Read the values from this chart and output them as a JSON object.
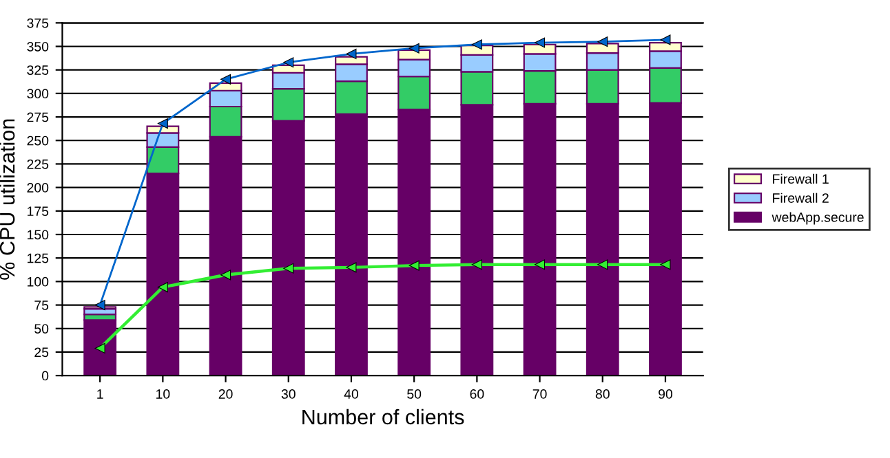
{
  "chart_data": {
    "type": "bar",
    "stacked": true,
    "xlabel": "Number of clients",
    "ylabel": "% CPU utilization",
    "categories": [
      "1",
      "10",
      "20",
      "30",
      "40",
      "50",
      "60",
      "70",
      "80",
      "90"
    ],
    "series": [
      {
        "type": "line",
        "color": "#33ee33",
        "marker": "triangle",
        "values": [
          29,
          94,
          107,
          114,
          115,
          117,
          118,
          118,
          118,
          118
        ]
      },
      {
        "type": "line",
        "color": "#0066cc",
        "marker": "triangle",
        "values": [
          75,
          268,
          315,
          333,
          342,
          348,
          352,
          354,
          355,
          357
        ]
      },
      {
        "name": "webApp.secure",
        "color": "#660066",
        "values": [
          59,
          215,
          254,
          271,
          278,
          283,
          288,
          289,
          289,
          290
        ]
      },
      {
        "color": "#33cc66",
        "values": [
          6,
          28,
          32,
          34,
          35,
          35,
          35,
          35,
          36,
          37
        ]
      },
      {
        "name": "Firewall 2",
        "color": "#99ccff",
        "values": [
          6,
          15,
          17,
          17,
          18,
          18,
          18,
          18,
          18,
          18
        ]
      },
      {
        "name": "Firewall 1",
        "color": "#ffffcc",
        "values": [
          2,
          7,
          8,
          8,
          8,
          10,
          10,
          10,
          10,
          9
        ]
      }
    ],
    "ylim": [
      0,
      375
    ],
    "yticks": [
      0,
      25,
      50,
      75,
      100,
      125,
      150,
      175,
      200,
      225,
      250,
      275,
      300,
      325,
      350,
      375
    ],
    "grid": "y",
    "legend": "right"
  }
}
